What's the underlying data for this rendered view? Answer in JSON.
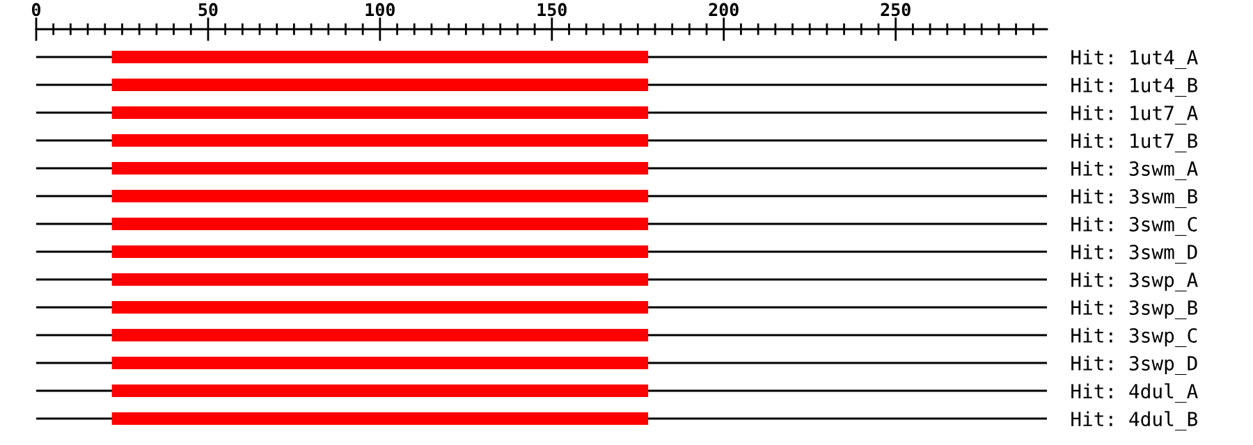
{
  "chart_data": {
    "type": "bar",
    "orientation": "horizontal",
    "categories": [
      "Hit: 1ut4_A",
      "Hit: 1ut4_B",
      "Hit: 1ut7_A",
      "Hit: 1ut7_B",
      "Hit: 3swm_A",
      "Hit: 3swm_B",
      "Hit: 3swm_C",
      "Hit: 3swm_D",
      "Hit: 3swp_A",
      "Hit: 3swp_B",
      "Hit: 3swp_C",
      "Hit: 3swp_D",
      "Hit: 4dul_A",
      "Hit: 4dul_B"
    ],
    "base": [
      22,
      22,
      22,
      22,
      22,
      22,
      22,
      22,
      22,
      22,
      22,
      22,
      22,
      22
    ],
    "values": [
      156,
      156,
      156,
      156,
      156,
      156,
      156,
      156,
      156,
      156,
      156,
      156,
      156,
      156
    ],
    "color": "#ff0000",
    "xlim": [
      0,
      294
    ],
    "xticks": [
      0,
      {
        "value": 5,
        "label": null
      },
      {
        "value": 10,
        "label": null
      },
      {
        "value": 15,
        "label": null
      },
      {
        "value": 20,
        "label": null
      },
      {
        "value": 25,
        "label": null
      },
      {
        "value": 30,
        "label": null
      },
      {
        "value": 35,
        "label": null
      },
      {
        "value": 40,
        "label": null
      },
      {
        "value": 45,
        "label": null
      },
      50,
      {
        "value": 55,
        "label": null
      },
      {
        "value": 60,
        "label": null
      },
      {
        "value": 65,
        "label": null
      },
      {
        "value": 70,
        "label": null
      },
      {
        "value": 75,
        "label": null
      },
      {
        "value": 80,
        "label": null
      },
      {
        "value": 85,
        "label": null
      },
      {
        "value": 90,
        "label": null
      },
      {
        "value": 95,
        "label": null
      },
      100,
      {
        "value": 105,
        "label": null
      },
      {
        "value": 110,
        "label": null
      },
      {
        "value": 115,
        "label": null
      },
      {
        "value": 120,
        "label": null
      },
      {
        "value": 125,
        "label": null
      },
      {
        "value": 130,
        "label": null
      },
      {
        "value": 135,
        "label": null
      },
      {
        "value": 140,
        "label": null
      },
      {
        "value": 145,
        "label": null
      },
      150,
      {
        "value": 155,
        "label": null
      },
      {
        "value": 160,
        "label": null
      },
      {
        "value": 165,
        "label": null
      },
      {
        "value": 170,
        "label": null
      },
      {
        "value": 175,
        "label": null
      },
      {
        "value": 180,
        "label": null
      },
      {
        "value": 185,
        "label": null
      },
      {
        "value": 190,
        "label": null
      },
      {
        "value": 195,
        "label": null
      },
      200,
      {
        "value": 205,
        "label": null
      },
      {
        "value": 210,
        "label": null
      },
      {
        "value": 215,
        "label": null
      },
      {
        "value": 220,
        "label": null
      },
      {
        "value": 225,
        "label": null
      },
      {
        "value": 230,
        "label": null
      },
      {
        "value": 235,
        "label": null
      },
      {
        "value": 240,
        "label": null
      },
      {
        "value": 245,
        "label": null
      },
      250,
      {
        "value": 255,
        "label": null
      },
      {
        "value": 260,
        "label": null
      },
      {
        "value": 265,
        "label": null
      },
      {
        "value": 270,
        "label": null
      },
      {
        "value": 275,
        "label": null
      },
      {
        "value": 280,
        "label": null
      },
      {
        "value": 285,
        "label": null
      },
      {
        "value": 290,
        "label": null
      }
    ],
    "grid": "y"
  }
}
